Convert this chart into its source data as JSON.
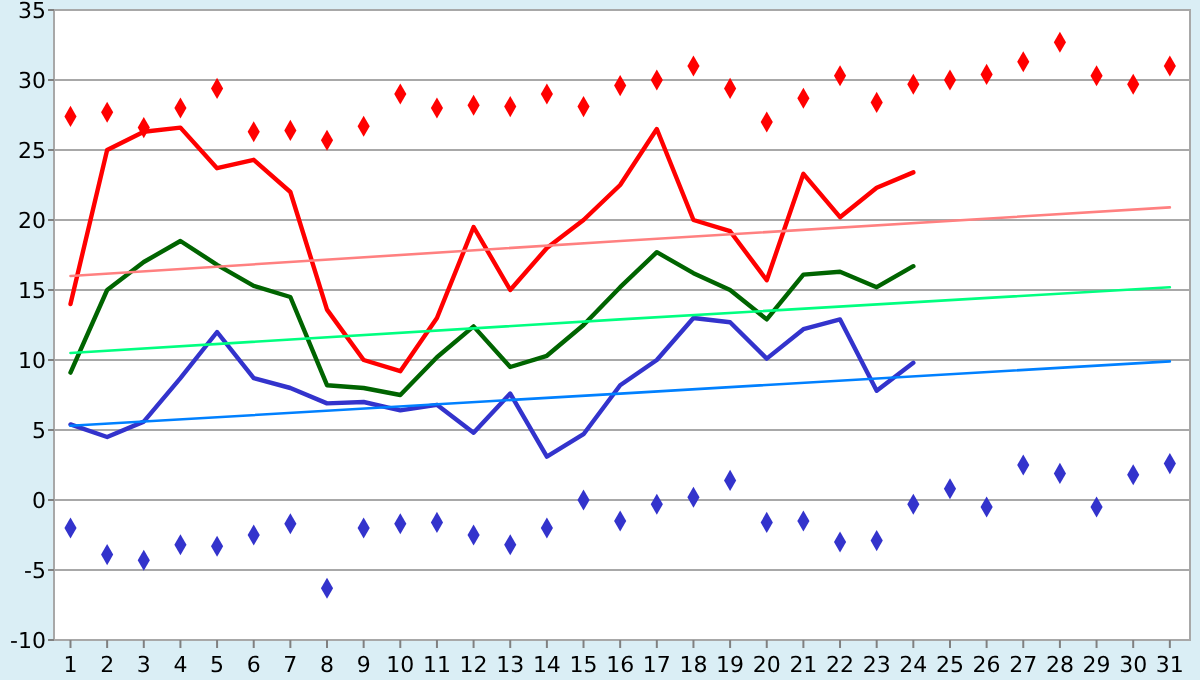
{
  "chart_data": {
    "type": "line",
    "x": [
      1,
      2,
      3,
      4,
      5,
      6,
      7,
      8,
      9,
      10,
      11,
      12,
      13,
      14,
      15,
      16,
      17,
      18,
      19,
      20,
      21,
      22,
      23,
      24,
      25,
      26,
      27,
      28,
      29,
      30,
      31
    ],
    "xlim": [
      0.55,
      31.55
    ],
    "xticks": [
      1,
      2,
      3,
      4,
      5,
      6,
      7,
      8,
      9,
      10,
      11,
      12,
      13,
      14,
      15,
      16,
      17,
      18,
      19,
      20,
      21,
      22,
      23,
      24,
      25,
      26,
      27,
      28,
      29,
      30,
      31
    ],
    "ylim": [
      -10,
      35
    ],
    "yticks": [
      -10,
      -5,
      0,
      5,
      10,
      15,
      20,
      25,
      30,
      35
    ],
    "grid": "y",
    "series": [
      {
        "color": "#ff0000",
        "values": [
          14,
          25,
          26.3,
          26.6,
          23.7,
          24.3,
          22,
          13.6,
          10,
          9.2,
          13,
          19.5,
          15,
          18,
          20,
          22.5,
          26.5,
          20,
          19.2,
          15.7,
          23.3,
          20.2,
          22.3,
          23.4,
          null,
          null,
          null,
          null,
          null,
          null,
          null
        ]
      },
      {
        "color": "#006400",
        "values": [
          9.1,
          15,
          17,
          18.5,
          16.8,
          15.3,
          14.5,
          8.2,
          8,
          7.5,
          10.2,
          12.4,
          9.5,
          10.3,
          12.5,
          15.2,
          17.7,
          16.2,
          15,
          12.9,
          16.1,
          16.3,
          15.2,
          16.7,
          null,
          null,
          null,
          null,
          null,
          null,
          null
        ]
      },
      {
        "color": "#3333cc",
        "values": [
          5.4,
          4.5,
          5.6,
          8.7,
          12,
          8.7,
          8,
          6.9,
          7,
          6.4,
          6.8,
          4.8,
          7.6,
          3.1,
          4.7,
          8.2,
          10,
          13,
          12.7,
          10.1,
          12.2,
          12.9,
          7.8,
          9.8,
          null,
          null,
          null,
          null,
          null,
          null,
          null
        ]
      },
      {
        "type": "scatter",
        "marker": "diamond",
        "color": "#ff0000",
        "values": [
          27.4,
          27.7,
          26.6,
          28,
          29.4,
          26.3,
          26.4,
          25.7,
          26.7,
          29,
          28,
          28.2,
          28.1,
          29,
          28.1,
          29.6,
          30,
          31,
          29.4,
          27,
          28.7,
          30.3,
          28.4,
          29.7,
          30,
          30.4,
          31.3,
          32.7,
          30.3,
          29.7,
          31
        ]
      },
      {
        "type": "scatter",
        "marker": "diamond",
        "color": "#3333cc",
        "values": [
          -2,
          -3.9,
          -4.3,
          -3.2,
          -3.3,
          -2.5,
          -1.7,
          -6.3,
          -2,
          -1.7,
          -1.6,
          -2.5,
          -3.2,
          -2,
          0,
          -1.5,
          -0.3,
          0.2,
          1.4,
          -1.6,
          -1.5,
          -3,
          -2.9,
          -0.3,
          0.8,
          -0.5,
          2.5,
          1.9,
          -0.5,
          1.8,
          2.6
        ]
      },
      {
        "color": "#ff8080",
        "x": [
          1,
          16,
          31
        ],
        "values": [
          16,
          18.5,
          20.9
        ]
      },
      {
        "color": "#00ff80",
        "x": [
          1,
          16,
          31
        ],
        "values": [
          10.5,
          12.9,
          15.2
        ]
      },
      {
        "color": "#0080ff",
        "x": [
          1,
          16,
          31
        ],
        "values": [
          5.3,
          7.6,
          9.9
        ]
      }
    ]
  }
}
